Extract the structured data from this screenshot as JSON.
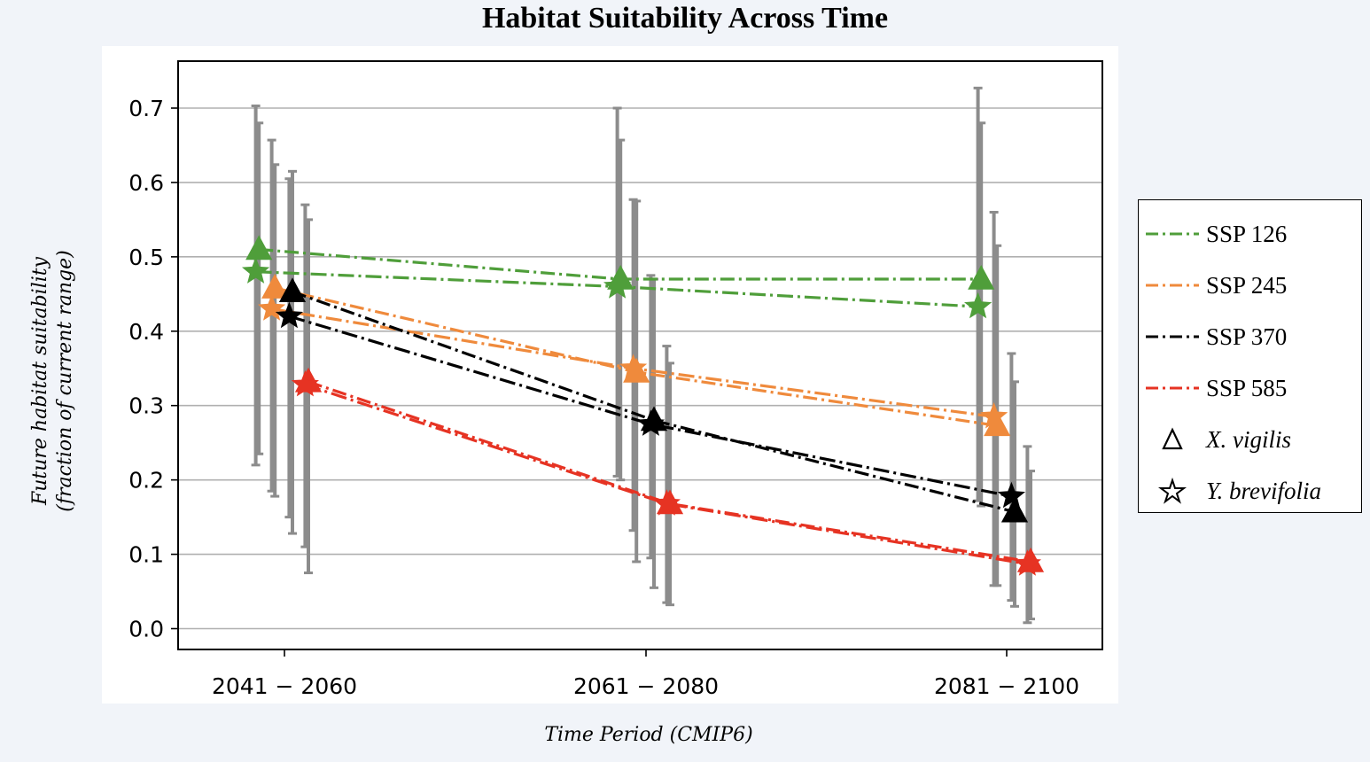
{
  "title": "Habitat Suitability Across Time",
  "chart_data": {
    "type": "line",
    "title": "Habitat Suitability Across Time",
    "xlabel": "Time Period (CMIP6)",
    "ylabel": "Future habitat suitability",
    "ylabel2": "(fraction of current range)",
    "categories": [
      "2041 − 2060",
      "2061 − 2080",
      "2081 − 2100"
    ],
    "ylim": [
      -0.03,
      0.76
    ],
    "yticks": [
      "0.0",
      "0.1",
      "0.2",
      "0.3",
      "0.4",
      "0.5",
      "0.6",
      "0.7"
    ],
    "grid": "horizontal",
    "legend_placement": "outside right",
    "colors": {
      "ssp126": "#4f9e3a",
      "ssp245": "#ef8a3c",
      "ssp370": "#000000",
      "ssp585": "#e63323",
      "errorbar": "#8c8c8c",
      "grid": "#b0b0b0"
    },
    "series": [
      {
        "name": "SSP 126",
        "ssp": "ssp126",
        "species": "X. vigilis",
        "marker": "triangle",
        "offset": -0.16,
        "values": [
          0.51,
          0.47,
          0.47
        ],
        "err_low": [
          0.235,
          0.2,
          0.165
        ],
        "err_high": [
          0.68,
          0.657,
          0.68
        ]
      },
      {
        "name": "SSP 126",
        "ssp": "ssp126",
        "species": "Y. brevifolia",
        "marker": "star",
        "offset": -0.18,
        "values": [
          0.48,
          0.46,
          0.433
        ],
        "err_low": [
          0.22,
          0.205,
          0.172
        ],
        "err_high": [
          0.703,
          0.7,
          0.727
        ]
      },
      {
        "name": "SSP 245",
        "ssp": "ssp245",
        "species": "X. vigilis",
        "marker": "triangle",
        "offset": -0.06,
        "values": [
          0.458,
          0.345,
          0.273
        ],
        "err_low": [
          0.178,
          0.09,
          0.058
        ],
        "err_high": [
          0.624,
          0.575,
          0.515
        ]
      },
      {
        "name": "SSP 245",
        "ssp": "ssp245",
        "species": "Y. brevifolia",
        "marker": "star",
        "offset": -0.08,
        "values": [
          0.43,
          0.35,
          0.285
        ],
        "err_low": [
          0.185,
          0.132,
          0.058
        ],
        "err_high": [
          0.657,
          0.577,
          0.56
        ]
      },
      {
        "name": "SSP 370",
        "ssp": "ssp370",
        "species": "X. vigilis",
        "marker": "triangle",
        "offset": 0.05,
        "values": [
          0.453,
          0.28,
          0.157
        ],
        "err_low": [
          0.128,
          0.055,
          0.03
        ],
        "err_high": [
          0.615,
          0.47,
          0.332
        ]
      },
      {
        "name": "SSP 370",
        "ssp": "ssp370",
        "species": "Y. brevifolia",
        "marker": "star",
        "offset": 0.03,
        "values": [
          0.42,
          0.275,
          0.178
        ],
        "err_low": [
          0.15,
          0.095,
          0.038
        ],
        "err_high": [
          0.605,
          0.475,
          0.37
        ]
      },
      {
        "name": "SSP 585",
        "ssp": "ssp585",
        "species": "X. vigilis",
        "marker": "triangle",
        "offset": 0.15,
        "values": [
          0.332,
          0.168,
          0.09
        ],
        "err_low": [
          0.075,
          0.032,
          0.013
        ],
        "err_high": [
          0.55,
          0.357,
          0.212
        ]
      },
      {
        "name": "SSP 585",
        "ssp": "ssp585",
        "species": "Y. brevifolia",
        "marker": "star",
        "offset": 0.13,
        "values": [
          0.328,
          0.168,
          0.087
        ],
        "err_low": [
          0.11,
          0.035,
          0.008
        ],
        "err_high": [
          0.57,
          0.38,
          0.245
        ]
      }
    ]
  },
  "legend": {
    "ssp126": "SSP 126",
    "ssp245": "SSP 245",
    "ssp370": "SSP 370",
    "ssp585": "SSP 585",
    "xvigilis": "X. vigilis",
    "ybrevifolia": "Y. brevifolia"
  }
}
